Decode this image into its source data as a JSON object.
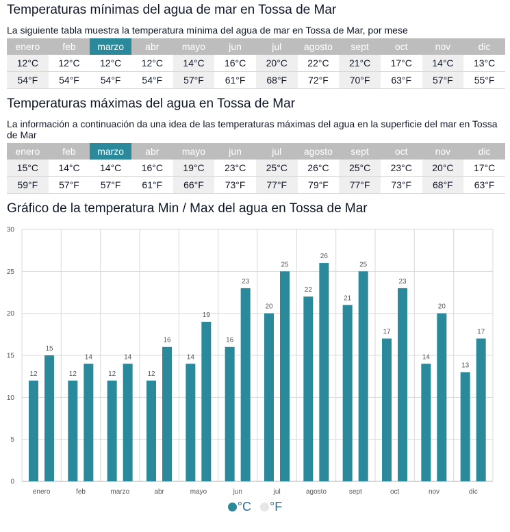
{
  "min_section": {
    "title": "Temperaturas mínimas del agua de mar en Tossa de Mar",
    "intro": "La siguiente tabla muestra la temperatura mínima del agua de mar en Tossa de Mar, por mese",
    "months": [
      "enero",
      "feb",
      "marzo",
      "abr",
      "mayo",
      "jun",
      "jul",
      "agosto",
      "sept",
      "oct",
      "nov",
      "dic"
    ],
    "celsius": [
      "12°C",
      "12°C",
      "12°C",
      "12°C",
      "14°C",
      "16°C",
      "20°C",
      "22°C",
      "21°C",
      "17°C",
      "14°C",
      "13°C"
    ],
    "fahrenheit": [
      "54°F",
      "54°F",
      "54°F",
      "54°F",
      "57°F",
      "61°F",
      "68°F",
      "72°F",
      "70°F",
      "63°F",
      "57°F",
      "55°F"
    ]
  },
  "max_section": {
    "title": "Temperaturas máximas del agua en Tossa de Mar",
    "intro": "La información a continuación da una idea de las temperaturas máximas del agua en la superficie del mar en Tossa de Mar",
    "months": [
      "enero",
      "feb",
      "marzo",
      "abr",
      "mayo",
      "jun",
      "jul",
      "agosto",
      "sept",
      "oct",
      "nov",
      "dic"
    ],
    "celsius": [
      "15°C",
      "14°C",
      "14°C",
      "16°C",
      "19°C",
      "23°C",
      "25°C",
      "26°C",
      "25°C",
      "23°C",
      "20°C",
      "17°C"
    ],
    "fahrenheit": [
      "59°F",
      "57°F",
      "57°F",
      "61°F",
      "66°F",
      "73°F",
      "77°F",
      "79°F",
      "77°F",
      "73°F",
      "68°F",
      "63°F"
    ]
  },
  "selected_month": "marzo",
  "colors": {
    "accent": "#2a8a9c",
    "header_gray": "#bdbdbd",
    "alt_cell": "#efefef"
  },
  "chart_section": {
    "title": "Gráfico de la temperatura Min / Max  del agua en Tossa de Mar"
  },
  "legend": [
    {
      "label": "°C",
      "color": "#2a8a9c"
    },
    {
      "label": "°F",
      "color": "#e6e6e6"
    }
  ],
  "chart_data": {
    "type": "bar",
    "categories": [
      "enero",
      "feb",
      "marzo",
      "abr",
      "mayo",
      "jun",
      "jul",
      "agosto",
      "sept",
      "oct",
      "nov",
      "dic"
    ],
    "series": [
      {
        "values": [
          12,
          12,
          12,
          12,
          14,
          16,
          20,
          22,
          21,
          17,
          14,
          13
        ]
      },
      {
        "values": [
          15,
          14,
          14,
          16,
          19,
          23,
          25,
          26,
          25,
          23,
          20,
          17
        ]
      }
    ],
    "ylim": [
      0,
      30
    ],
    "yticks": [
      0,
      5,
      10,
      15,
      20,
      25,
      30
    ],
    "grid": true,
    "legend_position": "bottom-center"
  }
}
